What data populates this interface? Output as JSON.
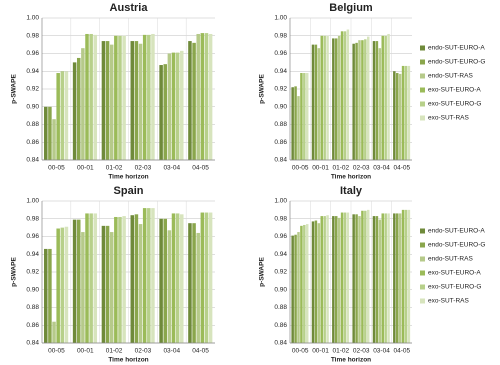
{
  "chart_data": [
    {
      "type": "bar",
      "title": "Austria",
      "xlabel": "Time horizon",
      "ylabel": "p-SWAPE",
      "categories": [
        "00-05",
        "00-01",
        "01-02",
        "02-03",
        "03-04",
        "04-05"
      ],
      "ylim": [
        0.84,
        1.0
      ],
      "yticks": [
        0.84,
        0.86,
        0.88,
        {
          "value": 0.9,
          "label": "0.90"
        },
        0.92,
        0.94,
        0.96,
        0.98,
        {
          "value": 1.0,
          "label": "1.00"
        }
      ],
      "grid": true,
      "series": [
        {
          "color": "#6f8a3a",
          "values": [
            0.9,
            0.95,
            0.974,
            0.974,
            0.947,
            0.974
          ]
        },
        {
          "color": "#8aa64c",
          "values": [
            0.9,
            0.955,
            0.974,
            0.974,
            0.948,
            0.972
          ]
        },
        {
          "color": "#b6ca8a",
          "values": [
            0.886,
            0.966,
            0.97,
            0.971,
            0.96,
            0.982
          ]
        },
        {
          "color": "#9bbb59",
          "values": [
            0.938,
            0.982,
            0.98,
            0.981,
            0.961,
            0.983
          ]
        },
        {
          "color": "#b7d08a",
          "values": [
            0.94,
            0.982,
            0.98,
            0.981,
            0.961,
            0.983
          ]
        },
        {
          "color": "#d7e4bd",
          "values": [
            0.94,
            0.981,
            0.98,
            0.982,
            0.963,
            0.982
          ]
        }
      ]
    },
    {
      "type": "bar",
      "title": "Belgium",
      "xlabel": "Time horizon",
      "ylabel": "p-SWAPE",
      "categories": [
        "00-05",
        "00-01",
        "01-02",
        "02-03",
        "03-04",
        "04-05"
      ],
      "ylim": [
        0.84,
        1.0
      ],
      "yticks": [
        0.84,
        0.86,
        0.88,
        {
          "value": 0.9,
          "label": "0.90"
        },
        0.92,
        0.94,
        0.96,
        0.98,
        {
          "value": 1.0,
          "label": "1.00"
        }
      ],
      "grid": true,
      "legend": "right",
      "series": [
        {
          "name": "endo-SUT-EURO-A",
          "color": "#6f8a3a",
          "values": [
            0.922,
            0.97,
            0.977,
            0.971,
            0.974,
            0.94
          ]
        },
        {
          "name": "endo-SUT-EURO-G",
          "color": "#8aa64c",
          "values": [
            0.923,
            0.97,
            0.977,
            0.972,
            0.974,
            0.938
          ]
        },
        {
          "name": "endo-SUT-RAS",
          "color": "#b6ca8a",
          "values": [
            0.912,
            0.966,
            0.98,
            0.975,
            0.966,
            0.937
          ]
        },
        {
          "name": "exo-SUT-EURO-A",
          "color": "#9bbb59",
          "values": [
            0.938,
            0.98,
            0.985,
            0.975,
            0.98,
            0.946
          ]
        },
        {
          "name": "exo-SUT-EURO-G",
          "color": "#b7d08a",
          "values": [
            0.938,
            0.98,
            0.985,
            0.976,
            0.98,
            0.946
          ]
        },
        {
          "name": "exo-SUT-RAS",
          "color": "#d7e4bd",
          "values": [
            0.938,
            0.98,
            0.987,
            0.979,
            0.982,
            0.946
          ]
        }
      ]
    },
    {
      "type": "bar",
      "title": "Spain",
      "xlabel": "Time horizon",
      "ylabel": "p-SWAPE",
      "categories": [
        "00-05",
        "00-01",
        "01-02",
        "02-03",
        "03-04",
        "04-05"
      ],
      "ylim": [
        0.84,
        1.0
      ],
      "yticks": [
        0.84,
        0.86,
        0.88,
        {
          "value": 0.9,
          "label": "0.90"
        },
        0.92,
        0.94,
        0.96,
        0.98,
        {
          "value": 1.0,
          "label": "1.00"
        }
      ],
      "grid": true,
      "series": [
        {
          "color": "#6f8a3a",
          "values": [
            0.946,
            0.979,
            0.972,
            0.984,
            0.98,
            0.975
          ]
        },
        {
          "color": "#8aa64c",
          "values": [
            0.946,
            0.979,
            0.972,
            0.985,
            0.98,
            0.975
          ]
        },
        {
          "color": "#b6ca8a",
          "values": [
            0.864,
            0.965,
            0.965,
            0.974,
            0.967,
            0.964
          ]
        },
        {
          "color": "#9bbb59",
          "values": [
            0.969,
            0.986,
            0.982,
            0.992,
            0.986,
            0.987
          ]
        },
        {
          "color": "#b7d08a",
          "values": [
            0.97,
            0.986,
            0.982,
            0.992,
            0.986,
            0.987
          ]
        },
        {
          "color": "#d7e4bd",
          "values": [
            0.971,
            0.986,
            0.983,
            0.992,
            0.985,
            0.987
          ]
        }
      ]
    },
    {
      "type": "bar",
      "title": "Italy",
      "xlabel": "Time horizon",
      "ylabel": "p-SWAPE",
      "categories": [
        "00-05",
        "00-01",
        "01-02",
        "02-03",
        "03-04",
        "04-05"
      ],
      "ylim": [
        0.84,
        1.0
      ],
      "yticks": [
        0.84,
        0.86,
        0.88,
        {
          "value": 0.9,
          "label": "0.90"
        },
        0.92,
        0.94,
        0.96,
        0.98,
        {
          "value": 1.0,
          "label": "1.00"
        }
      ],
      "grid": true,
      "legend": "right",
      "series": [
        {
          "name": "endo-SUT-EURO-A",
          "color": "#6f8a3a",
          "values": [
            0.961,
            0.977,
            0.983,
            0.985,
            0.983,
            0.986
          ]
        },
        {
          "name": "endo-SUT-EURO-G",
          "color": "#8aa64c",
          "values": [
            0.962,
            0.978,
            0.983,
            0.985,
            0.983,
            0.986
          ]
        },
        {
          "name": "endo-SUT-RAS",
          "color": "#b6ca8a",
          "values": [
            0.965,
            0.975,
            0.981,
            0.983,
            0.979,
            0.986
          ]
        },
        {
          "name": "exo-SUT-EURO-A",
          "color": "#9bbb59",
          "values": [
            0.972,
            0.983,
            0.987,
            0.989,
            0.986,
            0.99
          ]
        },
        {
          "name": "exo-SUT-EURO-G",
          "color": "#b7d08a",
          "values": [
            0.973,
            0.983,
            0.987,
            0.989,
            0.986,
            0.99
          ]
        },
        {
          "name": "exo-SUT-RAS",
          "color": "#d7e4bd",
          "values": [
            0.974,
            0.984,
            0.987,
            0.99,
            0.986,
            0.99
          ]
        }
      ]
    }
  ]
}
